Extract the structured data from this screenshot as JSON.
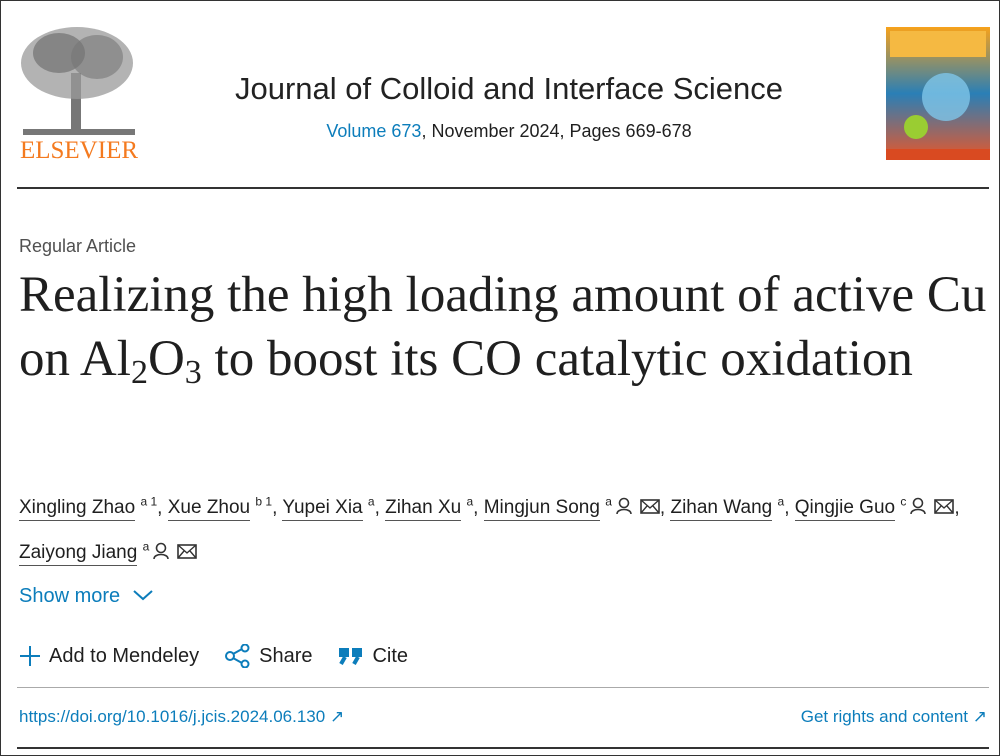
{
  "header": {
    "publisher": "ELSEVIER",
    "journal": "Journal of Colloid and Interface Science",
    "volume": "Volume 673",
    "issue_info": ", November 2024, Pages 669-678"
  },
  "article": {
    "type": "Regular Article",
    "title": [
      "Realizing the high loading amount of active Cu on Al",
      "2",
      "O",
      "3",
      " to boost its CO catalytic oxidation"
    ],
    "separator": ",",
    "authors": [
      {
        "name": "Xingling Zhao",
        "sup": "a 1"
      },
      {
        "name": "Xue Zhou",
        "sup": "b 1"
      },
      {
        "name": "Yupei Xia",
        "sup": "a"
      },
      {
        "name": "Zihan Xu",
        "sup": "a"
      },
      {
        "name": "Mingjun Song",
        "sup": "a"
      },
      {
        "name": "Zihan Wang",
        "sup": "a"
      },
      {
        "name": "Qingjie Guo",
        "sup": "c"
      },
      {
        "name": "Zaiyong Jiang",
        "sup": "a"
      }
    ],
    "show_more": "Show more",
    "actions": [
      "Add to Mendeley",
      "Share",
      "Cite"
    ],
    "doi": "https://doi.org/10.1016/j.jcis.2024.06.130",
    "rights": "Get rights and content"
  }
}
